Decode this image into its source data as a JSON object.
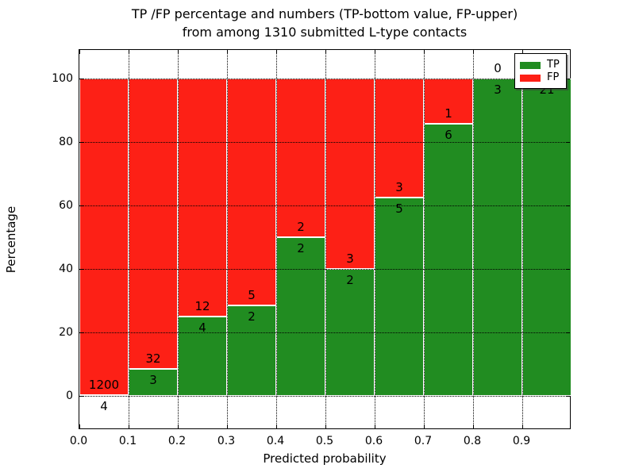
{
  "title_line1": "TP /FP percentage and numbers (TP-bottom value, FP-upper)",
  "title_line2": "from among 1310 submitted L-type contacts",
  "chart_data": {
    "type": "bar",
    "variant": "stacked-percentage-histogram",
    "title": "TP /FP percentage and numbers (TP-bottom value, FP-upper)\nfrom among 1310 submitted L-type contacts",
    "xlabel": "Predicted probability",
    "ylabel": "Percentage",
    "total_contacts": 1310,
    "xlim": [
      0.0,
      1.0
    ],
    "ylim": [
      -10.5,
      109.3
    ],
    "bin_width": 0.1,
    "grid": "dotted",
    "x_tick_labels": [
      "0.0",
      "0.1",
      "0.2",
      "0.3",
      "0.4",
      "0.5",
      "0.6",
      "0.7",
      "0.8",
      "0.9"
    ],
    "y_ticks": [
      0,
      20,
      40,
      60,
      80,
      100
    ],
    "series": [
      {
        "name": "TP",
        "color": "#218c21"
      },
      {
        "name": "FP",
        "color": "#fd2016"
      }
    ],
    "legend_position": "upper right",
    "bins": [
      {
        "x_start": 0.0,
        "x_end": 0.1,
        "tp": 4,
        "fp": 1200,
        "tp_pct": 0.33
      },
      {
        "x_start": 0.1,
        "x_end": 0.2,
        "tp": 3,
        "fp": 32,
        "tp_pct": 8.57
      },
      {
        "x_start": 0.2,
        "x_end": 0.3,
        "tp": 4,
        "fp": 12,
        "tp_pct": 25.0
      },
      {
        "x_start": 0.3,
        "x_end": 0.4,
        "tp": 2,
        "fp": 5,
        "tp_pct": 28.57
      },
      {
        "x_start": 0.4,
        "x_end": 0.5,
        "tp": 2,
        "fp": 2,
        "tp_pct": 50.0
      },
      {
        "x_start": 0.5,
        "x_end": 0.6,
        "tp": 2,
        "fp": 3,
        "tp_pct": 40.0
      },
      {
        "x_start": 0.6,
        "x_end": 0.7,
        "tp": 5,
        "fp": 3,
        "tp_pct": 62.5
      },
      {
        "x_start": 0.7,
        "x_end": 0.8,
        "tp": 6,
        "fp": 1,
        "tp_pct": 85.71
      },
      {
        "x_start": 0.8,
        "x_end": 0.9,
        "tp": 3,
        "fp": 0,
        "tp_pct": 100.0
      },
      {
        "x_start": 0.9,
        "x_end": 1.0,
        "tp": 21,
        "fp": 0,
        "tp_pct": 100.0
      }
    ]
  }
}
